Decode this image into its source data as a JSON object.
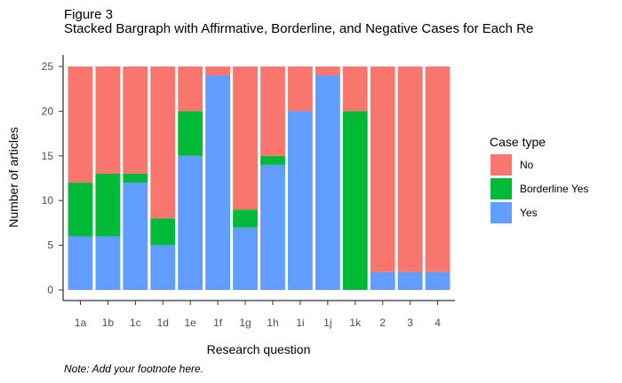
{
  "figure": {
    "label": "Figure 3",
    "title": "Stacked Bargraph with Affirmative, Borderline, and Negative Cases for Each Re",
    "footnote": "Note: Add your footnote here."
  },
  "chart_data": {
    "type": "bar",
    "stacked": true,
    "title": "Stacked Bargraph with Affirmative, Borderline, and Negative Cases for Each Re",
    "xlabel": "Research question",
    "ylabel": "Number of articles",
    "ylim": [
      0,
      25
    ],
    "yticks": [
      0,
      5,
      10,
      15,
      20,
      25
    ],
    "grid": false,
    "legend": {
      "title": "Case type",
      "placement": "right"
    },
    "categories": [
      "1a",
      "1b",
      "1c",
      "1d",
      "1e",
      "1f",
      "1g",
      "1h",
      "1i",
      "1j",
      "1k",
      "2",
      "3",
      "4"
    ],
    "series": [
      {
        "name": "Yes",
        "color": "#619CFF",
        "values": [
          6,
          6,
          12,
          5,
          15,
          24,
          7,
          14,
          20,
          24,
          0,
          2,
          2,
          2
        ]
      },
      {
        "name": "Borderline Yes",
        "color": "#00BA38",
        "values": [
          6,
          7,
          1,
          3,
          5,
          0,
          2,
          1,
          0,
          0,
          20,
          0,
          0,
          0
        ]
      },
      {
        "name": "No",
        "color": "#F8766D",
        "values": [
          13,
          12,
          12,
          17,
          5,
          1,
          16,
          10,
          5,
          1,
          5,
          23,
          23,
          23
        ]
      }
    ],
    "legend_order": [
      "No",
      "Borderline Yes",
      "Yes"
    ]
  }
}
